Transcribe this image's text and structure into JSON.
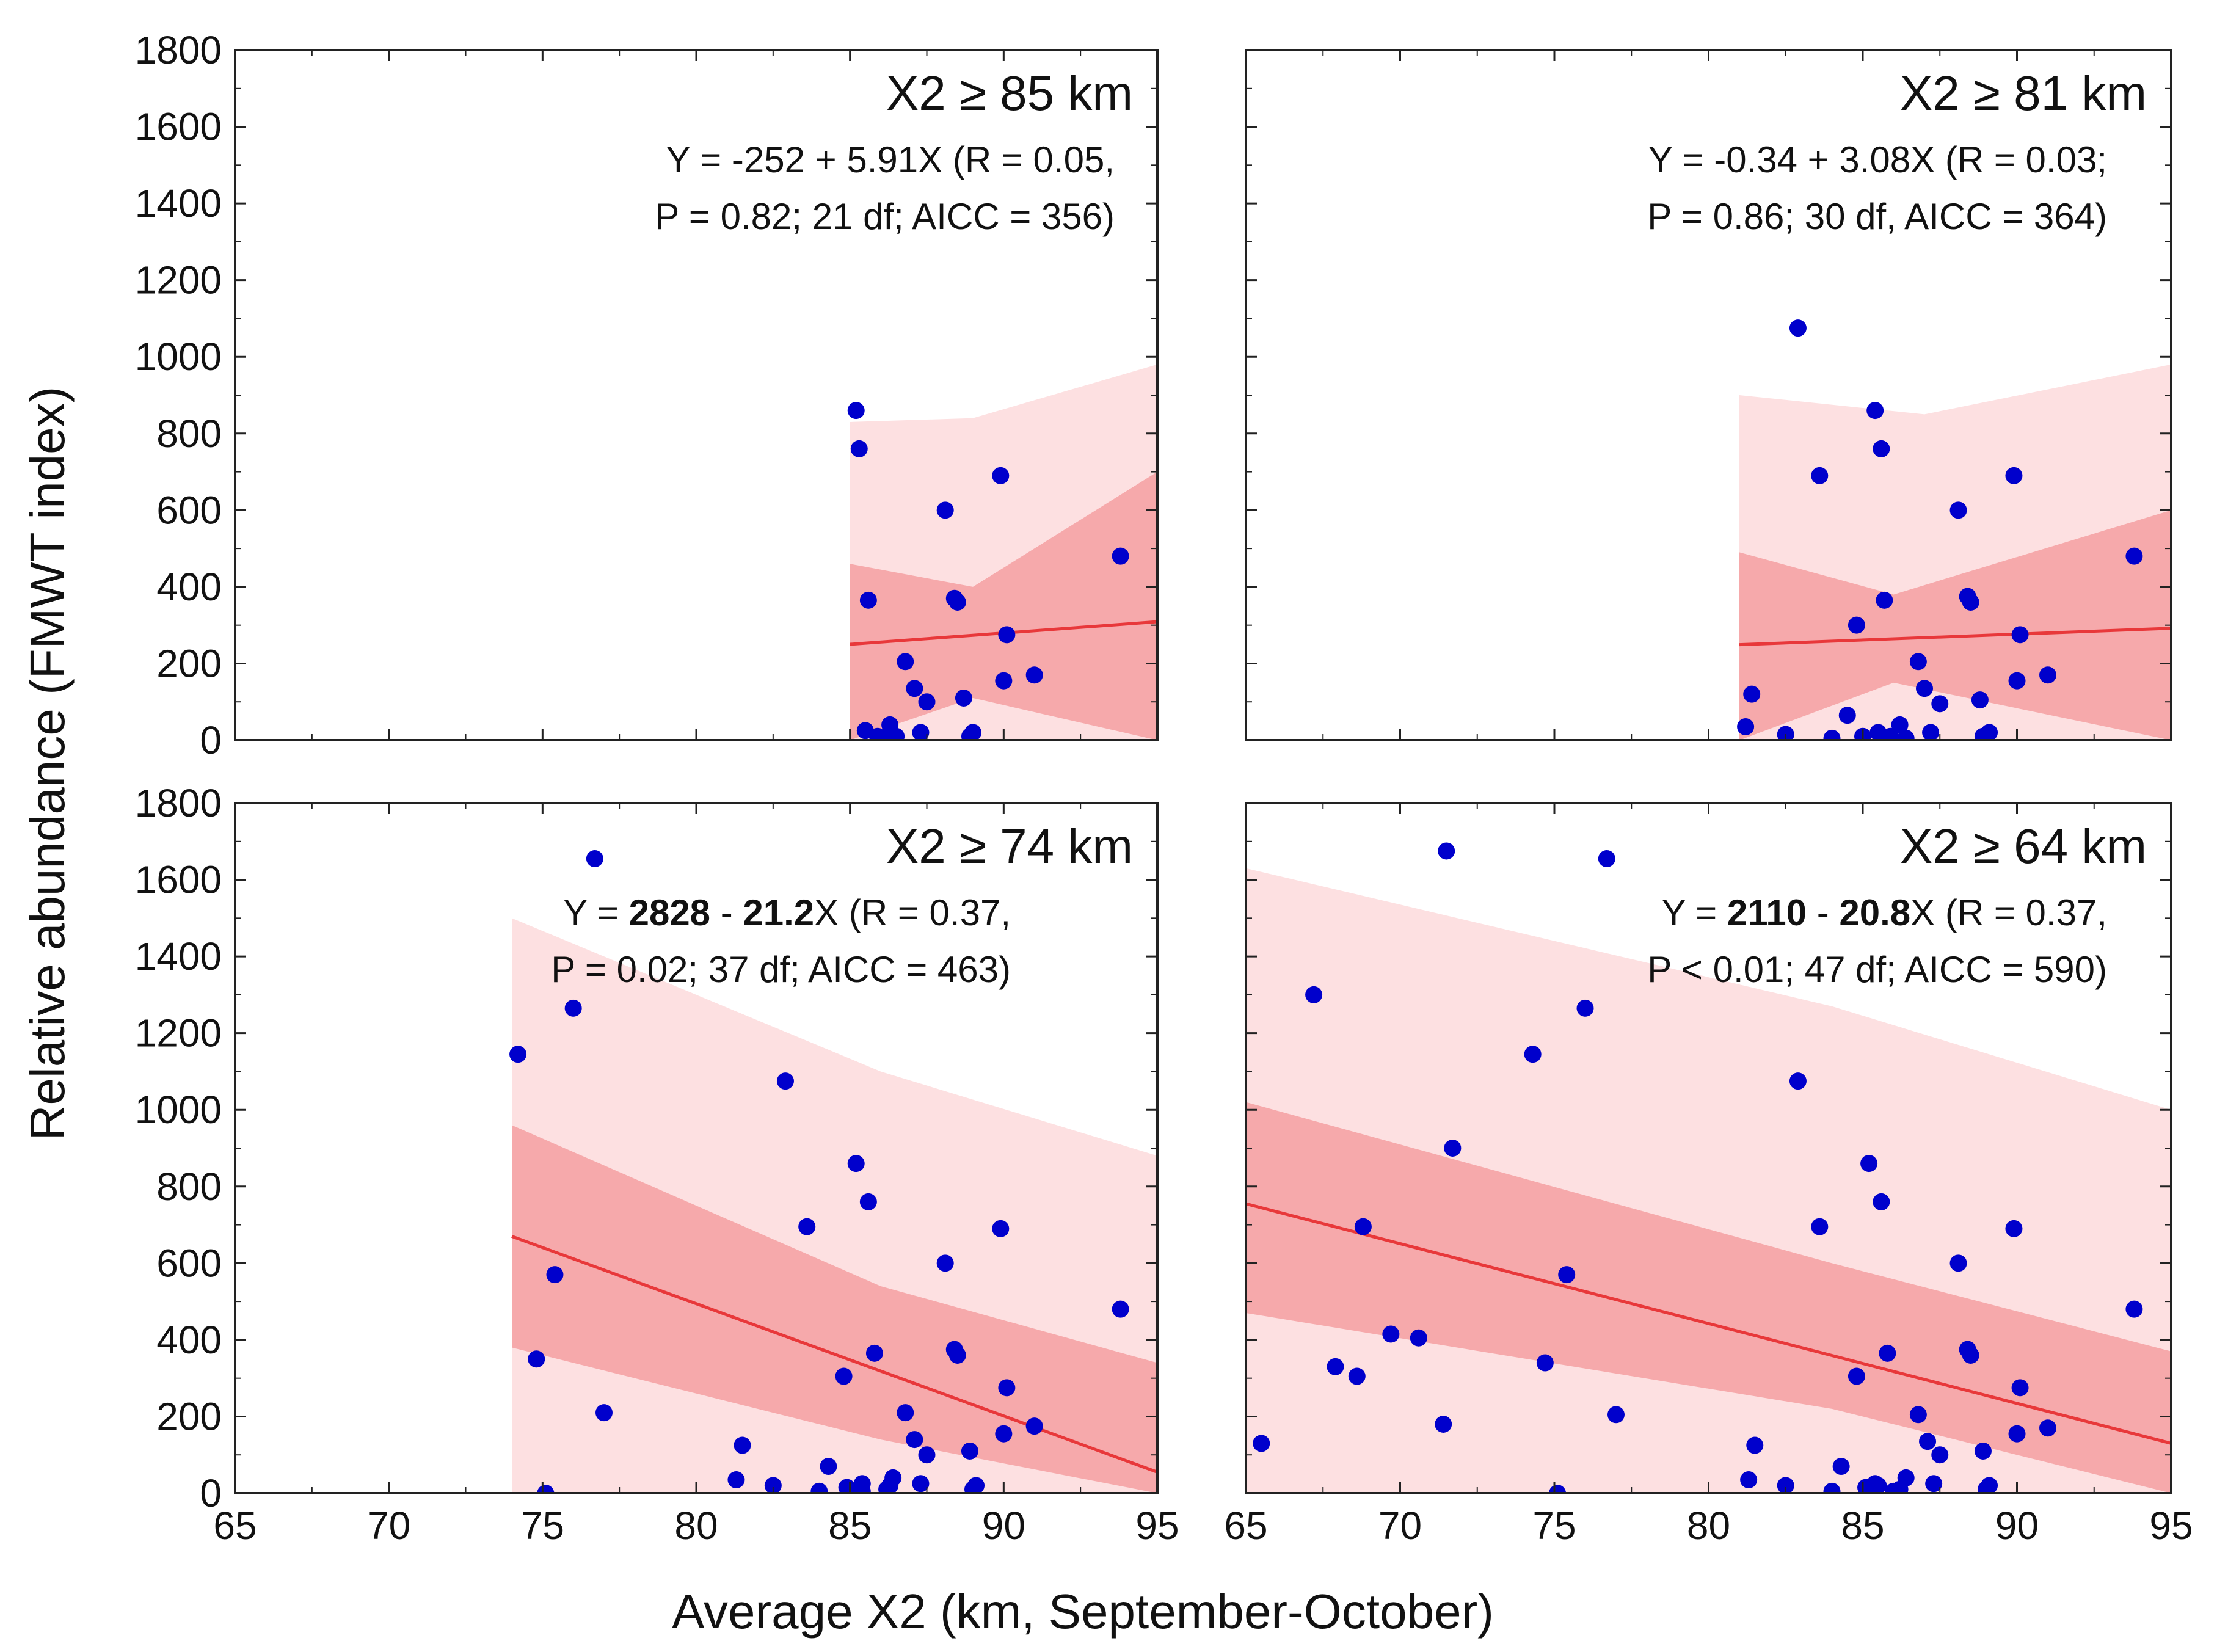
{
  "figure": {
    "ylabel": "Relative abundance (FMWT index)",
    "xlabel": "Average X2 (km, September-October)"
  },
  "colors": {
    "point": "#0000cc",
    "fit_line": "#e8383a",
    "band_inner": "#f6a9ab",
    "band_outer": "#fde0e1",
    "axes": "#222222"
  },
  "chart_data": [
    {
      "type": "scatter",
      "panel": "top-left",
      "title": "X2 ≥ 85 km",
      "equation": {
        "prefix": "Y = ",
        "intercept": "-252",
        "op": " + ",
        "slope": "5.91",
        "suffix": "X (R = 0.05,",
        "bold": false
      },
      "stats": "P = 0.82; 21 df; AICC = 356)",
      "xlim": [
        65,
        95
      ],
      "ylim": [
        0,
        1800
      ],
      "x_ticks": [],
      "y_ticks": [
        0,
        200,
        400,
        600,
        800,
        1000,
        1200,
        1400,
        1600,
        1800
      ],
      "fit": {
        "x0": 85,
        "y0": 250,
        "x1": 95,
        "y1": 309
      },
      "band_inner": {
        "x0": 85,
        "lower0": 0,
        "upper0": 460,
        "xmid": 89,
        "lower_mid": 110,
        "upper_mid": 400,
        "x1": 95,
        "lower1": -100,
        "upper1": 700
      },
      "band_outer": {
        "x0": 85,
        "lower0": 0,
        "upper0": 830,
        "xmid": 89,
        "lower_mid": 0,
        "upper_mid": 840,
        "x1": 95,
        "lower1": 0,
        "upper1": 980
      },
      "x": [
        85.2,
        85.3,
        85.5,
        85.6,
        85.9,
        86.1,
        86.3,
        86.5,
        86.8,
        87.1,
        87.3,
        87.5,
        88.1,
        88.4,
        88.5,
        88.7,
        88.9,
        89.0,
        89.9,
        90.0,
        90.1,
        91.0,
        93.8
      ],
      "y": [
        860,
        760,
        25,
        365,
        10,
        5,
        40,
        10,
        205,
        135,
        20,
        100,
        600,
        370,
        360,
        110,
        10,
        20,
        690,
        155,
        275,
        170,
        480
      ]
    },
    {
      "type": "scatter",
      "panel": "top-right",
      "title": "X2 ≥ 81 km",
      "equation": {
        "prefix": "Y = ",
        "intercept": "-0.34",
        "op": " + ",
        "slope": "3.08",
        "suffix": "X (R = 0.03;",
        "bold": false
      },
      "stats": "P = 0.86; 30 df, AICC = 364)",
      "xlim": [
        65,
        95
      ],
      "ylim": [
        0,
        1800
      ],
      "x_ticks": [],
      "y_ticks": [],
      "fit": {
        "x0": 81,
        "y0": 249,
        "x1": 95,
        "y1": 292
      },
      "band_inner": {
        "x0": 81,
        "lower0": 0,
        "upper0": 490,
        "xmid": 86,
        "lower_mid": 150,
        "upper_mid": 380,
        "x1": 95,
        "lower1": 0,
        "upper1": 600
      },
      "band_outer": {
        "x0": 81,
        "lower0": 0,
        "upper0": 900,
        "xmid": 87,
        "lower_mid": 0,
        "upper_mid": 850,
        "x1": 95,
        "lower1": 0,
        "upper1": 980
      },
      "x": [
        81.2,
        81.4,
        82.5,
        82.9,
        83.6,
        84.0,
        84.5,
        84.8,
        85.0,
        85.4,
        85.5,
        85.6,
        85.7,
        85.9,
        86.2,
        86.4,
        86.8,
        87.0,
        87.2,
        87.5,
        88.1,
        88.4,
        88.5,
        88.8,
        88.9,
        89.1,
        89.9,
        90.0,
        90.1,
        91.0,
        93.8,
        85.8
      ],
      "y": [
        35,
        120,
        15,
        1075,
        690,
        5,
        65,
        300,
        10,
        860,
        20,
        760,
        365,
        10,
        40,
        5,
        205,
        135,
        20,
        95,
        600,
        375,
        360,
        105,
        10,
        20,
        690,
        155,
        275,
        170,
        480,
        5
      ]
    },
    {
      "type": "scatter",
      "panel": "bottom-left",
      "title": "X2 ≥ 74 km",
      "equation": {
        "prefix": "Y = ",
        "intercept": "2828",
        "op": " - ",
        "slope": "21.2",
        "suffix": "X (R = 0.37,",
        "bold": true
      },
      "stats": "P = 0.02; 37 df; AICC = 463)",
      "xlim": [
        65,
        95
      ],
      "ylim": [
        0,
        1800
      ],
      "x_ticks": [
        65,
        70,
        75,
        80,
        85,
        90,
        95
      ],
      "y_ticks": [
        0,
        200,
        400,
        600,
        800,
        1000,
        1200,
        1400,
        1600,
        1800
      ],
      "fit": {
        "x0": 74,
        "y0": 670,
        "x1": 95,
        "y1": 55
      },
      "band_inner": {
        "x0": 74,
        "lower0": 380,
        "upper0": 960,
        "xmid": 86,
        "lower_mid": 140,
        "upper_mid": 540,
        "x1": 95,
        "lower1": -250,
        "upper1": 340
      },
      "band_outer": {
        "x0": 74,
        "lower0": 0,
        "upper0": 1500,
        "xmid": 86,
        "lower_mid": 0,
        "upper_mid": 1100,
        "x1": 95,
        "lower1": 0,
        "upper1": 880
      },
      "x": [
        74.2,
        74.8,
        75.1,
        75.4,
        76.0,
        76.7,
        77.0,
        81.3,
        81.5,
        82.5,
        82.9,
        83.6,
        84.0,
        84.3,
        84.8,
        85.2,
        85.4,
        85.6,
        85.8,
        86.2,
        86.4,
        86.8,
        87.1,
        87.3,
        87.5,
        88.1,
        88.4,
        88.5,
        88.9,
        89.0,
        89.1,
        89.9,
        90.0,
        90.1,
        91.0,
        93.8,
        85.4,
        84.9,
        86.3
      ],
      "y": [
        1145,
        350,
        0,
        570,
        1265,
        1655,
        210,
        35,
        125,
        20,
        1075,
        695,
        5,
        70,
        305,
        860,
        25,
        760,
        365,
        10,
        40,
        210,
        140,
        25,
        100,
        600,
        375,
        360,
        110,
        10,
        20,
        690,
        155,
        275,
        175,
        480,
        5,
        15,
        20
      ]
    },
    {
      "type": "scatter",
      "panel": "bottom-right",
      "title": "X2 ≥ 64 km",
      "equation": {
        "prefix": "Y = ",
        "intercept": "2110",
        "op": " - ",
        "slope": "20.8",
        "suffix": "X (R = 0.37,",
        "bold": true
      },
      "stats": "P < 0.01; 47 df; AICC = 590)",
      "xlim": [
        65,
        95
      ],
      "ylim": [
        0,
        1800
      ],
      "x_ticks": [
        65,
        70,
        75,
        80,
        85,
        90,
        95
      ],
      "y_ticks": [],
      "fit": {
        "x0": 65,
        "y0": 755,
        "x1": 95,
        "y1": 130
      },
      "band_inner": {
        "x0": 65,
        "lower0": 470,
        "upper0": 1020,
        "xmid": 84,
        "lower_mid": 220,
        "upper_mid": 600,
        "x1": 95,
        "lower1": -150,
        "upper1": 370
      },
      "band_outer": {
        "x0": 65,
        "lower0": 0,
        "upper0": 1630,
        "xmid": 84,
        "lower_mid": 0,
        "upper_mid": 1270,
        "x1": 95,
        "lower1": 0,
        "upper1": 1000
      },
      "x": [
        65.5,
        67.2,
        67.9,
        68.6,
        68.8,
        69.7,
        70.6,
        71.4,
        71.5,
        71.7,
        74.3,
        74.7,
        75.1,
        75.4,
        76.0,
        76.7,
        77.0,
        81.3,
        81.5,
        82.5,
        82.9,
        83.6,
        84.0,
        84.3,
        84.8,
        85.2,
        85.4,
        85.6,
        85.8,
        86.2,
        86.4,
        86.8,
        87.1,
        87.3,
        87.5,
        88.1,
        88.4,
        88.5,
        88.9,
        89.0,
        89.1,
        89.9,
        90.0,
        90.1,
        91.0,
        93.8,
        85.1,
        86.0,
        85.5
      ],
      "y": [
        130,
        1300,
        330,
        305,
        695,
        415,
        405,
        180,
        1675,
        900,
        1145,
        340,
        0,
        570,
        1265,
        1655,
        205,
        35,
        125,
        20,
        1075,
        695,
        5,
        70,
        305,
        860,
        25,
        760,
        365,
        10,
        40,
        205,
        135,
        25,
        100,
        600,
        375,
        360,
        110,
        10,
        20,
        690,
        155,
        275,
        170,
        480,
        15,
        5,
        20
      ]
    }
  ]
}
